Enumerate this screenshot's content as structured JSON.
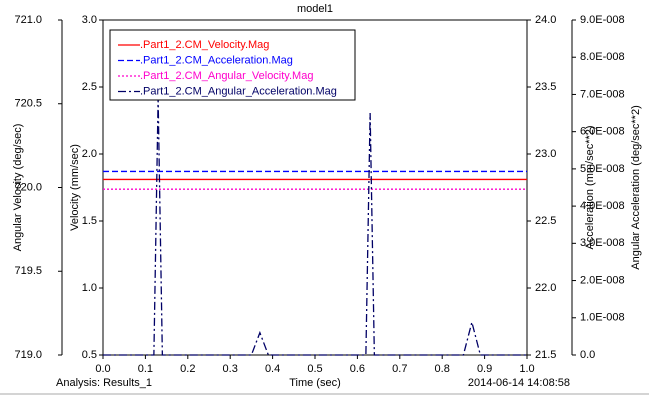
{
  "chart_data": {
    "type": "line",
    "title": "model1",
    "xlabel": "Time (sec)",
    "annotations": [
      "Analysis:  Results_1",
      "2014-06-14 14:08:58"
    ],
    "xlim": [
      0,
      1
    ],
    "xticks": [
      {
        "value": 0,
        "label": "0.0"
      },
      0.1,
      0.2,
      0.3,
      0.4,
      0.5,
      0.6,
      0.7,
      0.8,
      0.9,
      {
        "value": 1,
        "label": "1.0"
      }
    ],
    "ylabel": "Velocity (mm/sec)",
    "ylim": [
      0.5,
      3.0
    ],
    "yticks": [
      0.5,
      {
        "value": 1,
        "label": "1.0"
      },
      1.5,
      {
        "value": 2,
        "label": "2.0"
      },
      2.5,
      {
        "value": 3,
        "label": "3.0"
      }
    ],
    "y2label": "Acceleration (mm/sec**2)",
    "y2lim": [
      21.5,
      24.0
    ],
    "y2ticks": [
      21.5,
      {
        "value": 22,
        "label": "22.0"
      },
      22.5,
      {
        "value": 23,
        "label": "23.0"
      },
      23.5,
      {
        "value": 24,
        "label": "24.0"
      }
    ],
    "y3label": "Angular Velocity (deg/sec)",
    "y3lim": [
      719.0,
      721.0
    ],
    "y3ticks": [
      {
        "value": 719,
        "label": "719.0"
      },
      719.5,
      {
        "value": 720,
        "label": "720.0"
      },
      720.5,
      {
        "value": 721,
        "label": "721.0"
      }
    ],
    "y4label": "Angular Acceleration (deg/sec**2)",
    "y4lim": [
      0,
      9e-08
    ],
    "y4ticks": [
      {
        "value": 0,
        "label": "0.0"
      },
      {
        "value": 1e-08,
        "label": "1.0E-008"
      },
      {
        "value": 2e-08,
        "label": "2.0E-008"
      },
      {
        "value": 3e-08,
        "label": "3.0E-008"
      },
      {
        "value": 4e-08,
        "label": "4.0E-008"
      },
      {
        "value": 5e-08,
        "label": "5.0E-008"
      },
      {
        "value": 6e-08,
        "label": "6.0E-008"
      },
      {
        "value": 7e-08,
        "label": "7.0E-008"
      },
      {
        "value": 8e-08,
        "label": "8.0E-008"
      },
      {
        "value": 9e-08,
        "label": "9.0E-008"
      }
    ],
    "series": [
      {
        "name": ".Part1_2.CM_Velocity.Mag",
        "color": "#ff0000",
        "dash": "solid",
        "axis": "y",
        "x": [
          0,
          1
        ],
        "values": [
          1.81,
          1.81
        ]
      },
      {
        "name": ".Part1_2.CM_Acceleration.Mag",
        "color": "#0000ff",
        "dash": "dashed",
        "axis": "y2",
        "x": [
          0,
          1
        ],
        "values": [
          22.87,
          22.87
        ]
      },
      {
        "name": ".Part1_2.CM_Angular_Velocity.Mag",
        "color": "#ff00cc",
        "dash": "dotted",
        "axis": "y3",
        "x": [
          0,
          1
        ],
        "values": [
          719.99,
          719.99
        ]
      },
      {
        "name": ".Part1_2.CM_Angular_Acceleration.Mag",
        "color": "#000066",
        "dash": "dashdot",
        "axis": "y4",
        "x": [
          0,
          0.12,
          0.13,
          0.14,
          0.15,
          0.35,
          0.37,
          0.39,
          0.62,
          0.63,
          0.64,
          0.65,
          0.85,
          0.87,
          0.89,
          1.0
        ],
        "values": [
          0,
          0,
          6.9e-08,
          0,
          0,
          0,
          6e-09,
          0,
          0,
          6.5e-08,
          0,
          0,
          0,
          8.8e-09,
          0,
          0
        ]
      }
    ],
    "legend": "upper left"
  }
}
